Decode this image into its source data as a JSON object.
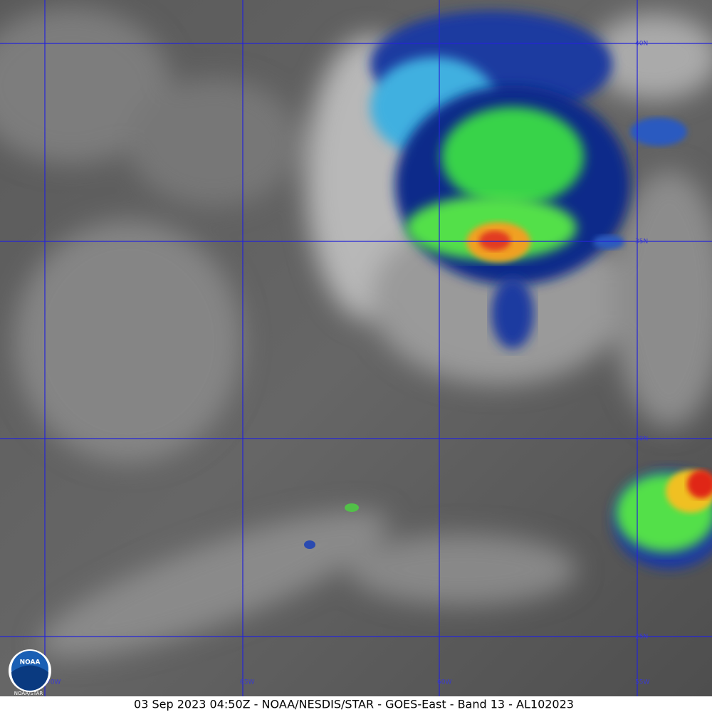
{
  "image": {
    "caption": "03 Sep 2023 04:50Z - NOAA/NESDIS/STAR - GOES-East - Band 13 - AL102023",
    "latitude_labels": [
      "40N",
      "35N",
      "30N",
      "25N"
    ],
    "longitude_labels": [
      "70W",
      "65W",
      "60W",
      "55W"
    ],
    "logo": {
      "name": "NOAA",
      "sublabel": "NOAA/STAR"
    }
  }
}
